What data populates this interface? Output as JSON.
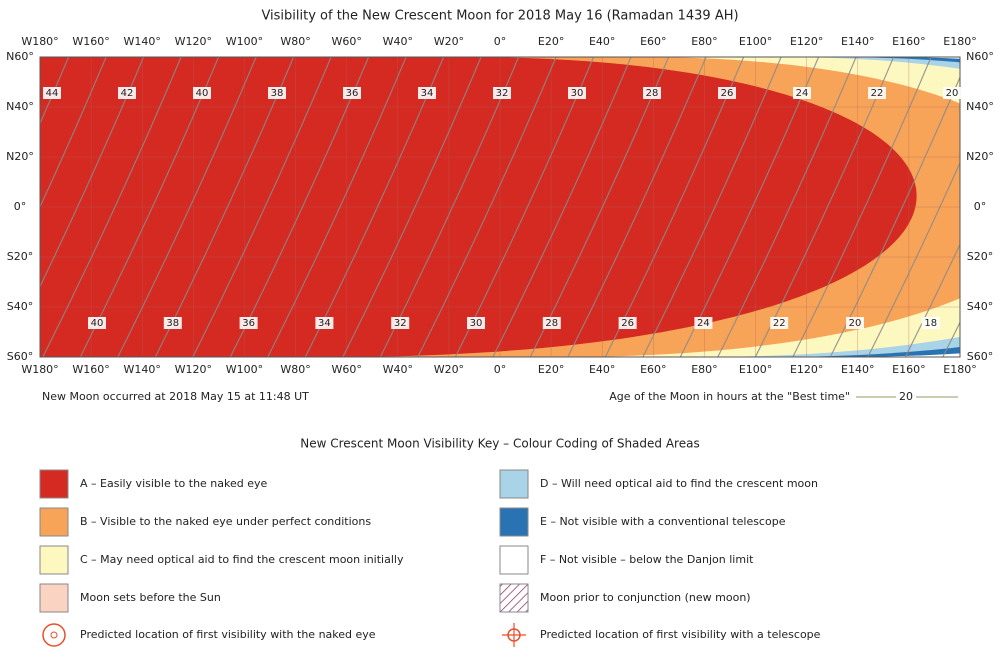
{
  "title": "Visibility of the New Crescent Moon for 2018 May 16 (Ramadan 1439 AH)",
  "lon_labels": [
    "W180°",
    "W160°",
    "W140°",
    "W120°",
    "W100°",
    "W80°",
    "W60°",
    "W40°",
    "W20°",
    "0°",
    "E20°",
    "E40°",
    "E60°",
    "E80°",
    "E100°",
    "E120°",
    "E140°",
    "E160°",
    "E180°"
  ],
  "lat_labels": [
    "N60°",
    "N40°",
    "N20°",
    "0°",
    "S20°",
    "S40°",
    "S60°"
  ],
  "age_contour_labels": {
    "north": [
      "44",
      "42",
      "40",
      "38",
      "36",
      "34",
      "32",
      "30",
      "28",
      "26",
      "24",
      "22",
      "20"
    ],
    "south": [
      "40",
      "38",
      "36",
      "34",
      "32",
      "30",
      "28",
      "26",
      "24",
      "22",
      "20",
      "18"
    ]
  },
  "new_moon_note": "New Moon occurred at 2018 May 15 at 11:48 UT",
  "age_legend": {
    "text": "Age of the Moon in hours at the \"Best time\"",
    "sample": "20"
  },
  "key": {
    "title": "New Crescent Moon Visibility Key – Colour Coding of Shaded Areas",
    "items": [
      {
        "label": "A – Easily visible to the naked eye",
        "color": "#d42a22"
      },
      {
        "label": "B – Visible to the naked eye under perfect conditions",
        "color": "#f8a458"
      },
      {
        "label": "C – May need optical aid to find the crescent moon initially",
        "color": "#fdf8bf"
      },
      {
        "label": "Moon sets before the Sun",
        "color": "#fbd3c2"
      },
      {
        "label": "D – Will need optical aid to find the crescent moon",
        "color": "#a9d3e6"
      },
      {
        "label": "E – Not visible with a conventional telescope",
        "color": "#2a73b3"
      },
      {
        "label": "F – Not visible – below the Danjon limit",
        "color": "#ffffff"
      },
      {
        "label": "Moon prior to conjunction (new moon)",
        "color": "#ffffff",
        "hatched": true
      }
    ],
    "markers": [
      {
        "label": "Predicted location of first visibility with the naked eye"
      },
      {
        "label": "Predicted location of first visibility with a telescope"
      }
    ]
  }
}
